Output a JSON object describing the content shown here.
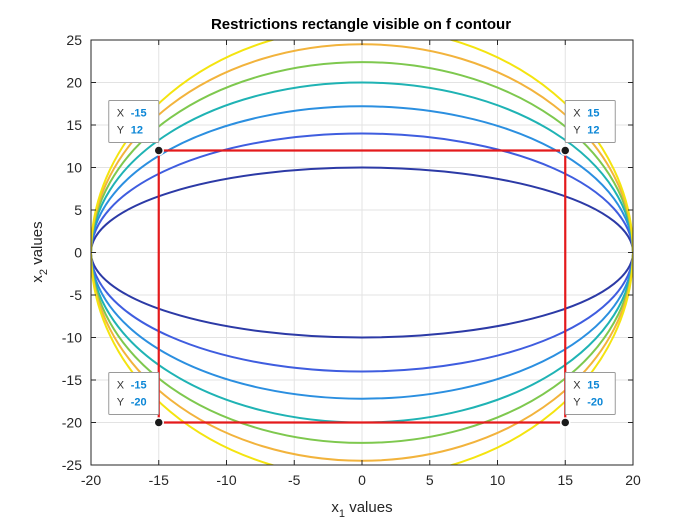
{
  "chart_data": {
    "type": "contour",
    "title": "Restrictions rectangle visible on f contour",
    "xlabel": {
      "base": "x",
      "sub": "1",
      "rest": " values"
    },
    "ylabel": {
      "base": "x",
      "sub": "2",
      "rest": " values"
    },
    "xlim": [
      -20,
      20
    ],
    "ylim": [
      -25,
      25
    ],
    "xticks": [
      -20,
      -15,
      -10,
      -5,
      0,
      5,
      10,
      15,
      20
    ],
    "yticks": [
      -25,
      -20,
      -15,
      -10,
      -5,
      0,
      5,
      10,
      15,
      20,
      25
    ],
    "grid": true,
    "contours": [
      {
        "b": 10,
        "color": "#2c3aa6"
      },
      {
        "b": 14,
        "color": "#3f5ddf"
      },
      {
        "b": 17.2,
        "color": "#2b8fe0"
      },
      {
        "b": 20,
        "color": "#1fb3b4"
      },
      {
        "b": 22.4,
        "color": "#7ec84e"
      },
      {
        "b": 24.5,
        "color": "#f2b33c"
      },
      {
        "b": 26.5,
        "color": "#f4e40f"
      }
    ],
    "contour_a": 20,
    "rectangle": {
      "color": "#e41a1c",
      "vertices": [
        [
          -15,
          12
        ],
        [
          15,
          12
        ],
        [
          15,
          -20
        ],
        [
          -15,
          -20
        ]
      ]
    },
    "datatips": [
      {
        "x": -15,
        "y": 12,
        "x_label": "X",
        "y_label": "Y",
        "x_text": "-15",
        "y_text": "12",
        "side": "left",
        "vert": "above"
      },
      {
        "x": 15,
        "y": 12,
        "x_label": "X",
        "y_label": "Y",
        "x_text": "15",
        "y_text": "12",
        "side": "right",
        "vert": "above"
      },
      {
        "x": -15,
        "y": -20,
        "x_label": "X",
        "y_label": "Y",
        "x_text": "-15",
        "y_text": "-20",
        "side": "left",
        "vert": "above"
      },
      {
        "x": 15,
        "y": -20,
        "x_label": "X",
        "y_label": "Y",
        "x_text": "15",
        "y_text": "-20",
        "side": "right",
        "vert": "above"
      }
    ]
  }
}
